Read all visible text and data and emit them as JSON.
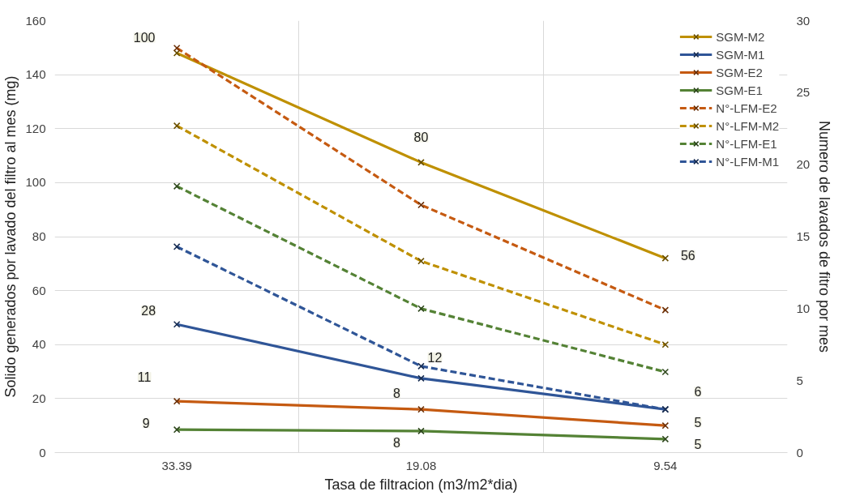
{
  "chart_data": {
    "type": "line",
    "xlabel": "Tasa de filtracion (m3/m2*dia)",
    "ylabel": "Solido generados por lavado del filtro al mes (mg)",
    "y2label": "Numero de lavados de fitro por mes",
    "categories": [
      "33.39",
      "19.08",
      "9.54"
    ],
    "ylim": [
      0,
      160
    ],
    "yticks": [
      0,
      20,
      40,
      60,
      80,
      100,
      120,
      140,
      160
    ],
    "y2lim": [
      0,
      30
    ],
    "y2ticks": [
      0,
      5,
      10,
      15,
      20,
      25,
      30
    ],
    "grid": true,
    "legend": "top right",
    "marker": "cross",
    "series": [
      {
        "name": "SGM-M2",
        "color": "#bf9000",
        "values": [
          148,
          107.5,
          72
        ],
        "line_style": "solid"
      },
      {
        "name": "SGM-M1",
        "color": "#2f5597",
        "values": [
          47.5,
          27.5,
          16
        ],
        "line_style": "solid"
      },
      {
        "name": "SGM-E2",
        "color": "#c55a11",
        "values": [
          19,
          16,
          10
        ],
        "line_style": "solid"
      },
      {
        "name": "SGM-E1",
        "color": "#548235",
        "values": [
          8.5,
          8,
          5
        ],
        "line_style": "solid"
      },
      {
        "name": "N°-LFM-E2",
        "color": "#c55a11",
        "values": [
          28.1,
          17.2,
          9.9
        ],
        "axis": "y2",
        "line_style": "dashed"
      },
      {
        "name": "N°-LFM-M2",
        "color": "#bf9000",
        "values": [
          22.7,
          13.3,
          7.5
        ],
        "axis": "y2",
        "line_style": "dashed"
      },
      {
        "name": "N°-LFM-E1",
        "color": "#548235",
        "values": [
          18.5,
          10,
          5.6
        ],
        "axis": "y2",
        "line_style": "dashed"
      },
      {
        "name": "N°-LFM-M1",
        "color": "#2f5597",
        "values": [
          14.3,
          6,
          3
        ],
        "axis": "y2",
        "line_style": "dashed"
      }
    ],
    "annotations": [
      {
        "text": "100",
        "x": "33.39",
        "y": 148
      },
      {
        "text": "80",
        "x": "19.08",
        "y": 107.5
      },
      {
        "text": "56",
        "x": "9.54",
        "y": 72
      },
      {
        "text": "28",
        "x": "33.39",
        "y": 47.5
      },
      {
        "text": "12",
        "x": "19.08",
        "y": 27.5
      },
      {
        "text": "6",
        "x": "9.54",
        "y": 16
      },
      {
        "text": "11",
        "x": "33.39",
        "y": 19
      },
      {
        "text": "8",
        "x": "19.08",
        "y": 16
      },
      {
        "text": "5",
        "x": "9.54",
        "y": 10
      },
      {
        "text": "9",
        "x": "33.39",
        "y": 8.5
      },
      {
        "text": "8",
        "x": "19.08",
        "y": 8
      },
      {
        "text": "5",
        "x": "9.54",
        "y": 5
      }
    ]
  }
}
